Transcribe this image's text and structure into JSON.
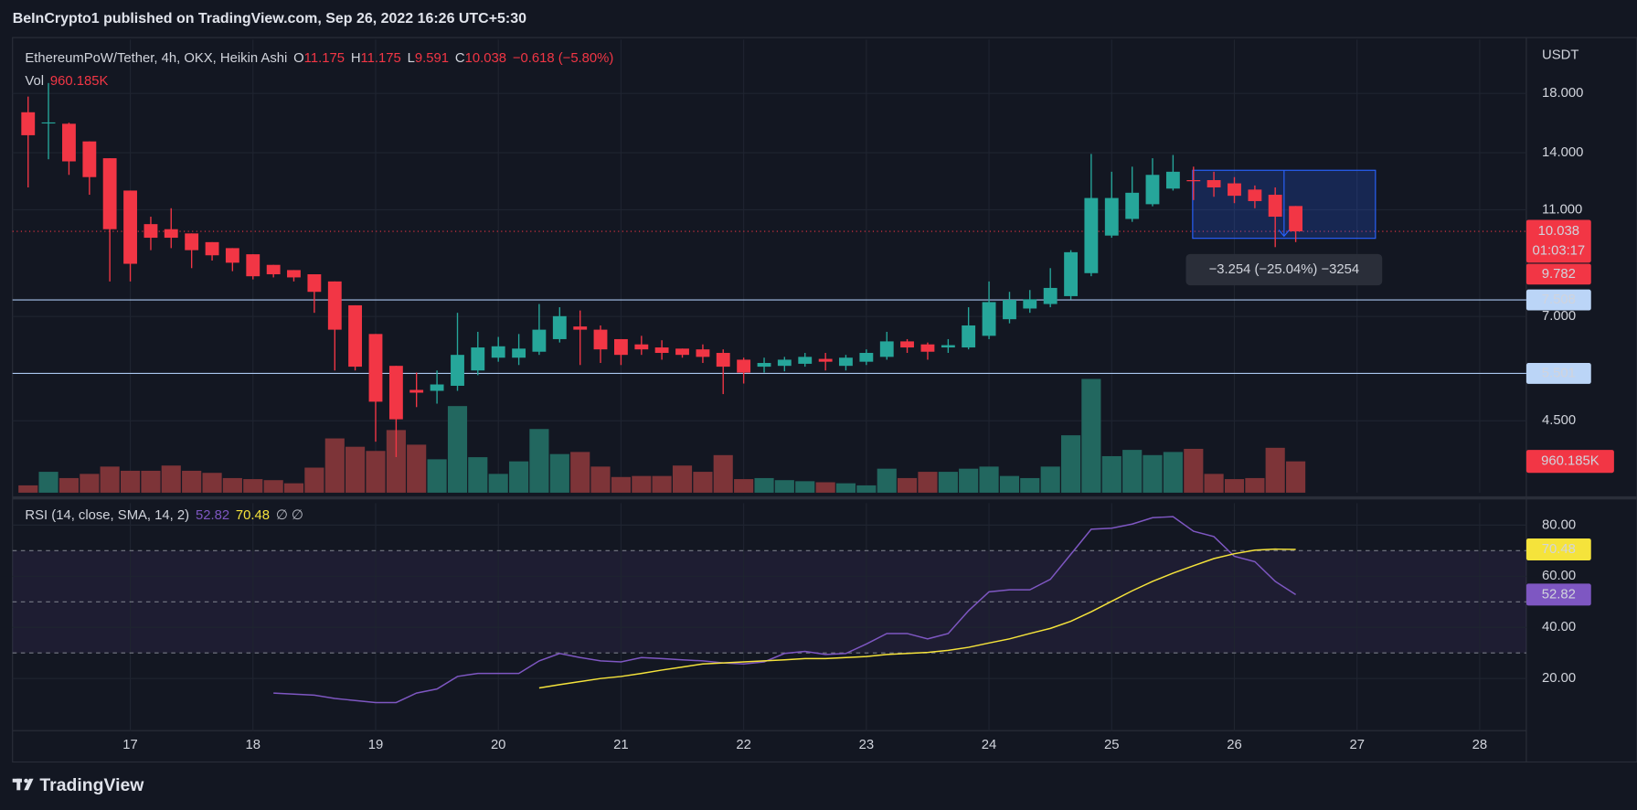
{
  "header": {
    "publisher": "BeInCrypto1 published on TradingView.com, Sep 26, 2022 16:26 UTC+5:30"
  },
  "footer": {
    "logo": "TradingView"
  },
  "chart_data": [
    {
      "type": "candlestick",
      "title": "EthereumPoW/Tether, 4h, OKX, Heikin Ashi",
      "ohlc_legend": [
        {
          "key": "O",
          "value": "11.175"
        },
        {
          "key": "H",
          "value": "11.175"
        },
        {
          "key": "L",
          "value": "9.591"
        },
        {
          "key": "C",
          "value": "10.038"
        }
      ],
      "change": "−0.618 (−5.80%)",
      "y_unit": "USDT",
      "log_scale": true,
      "grid": true,
      "up_color": "#26a69a",
      "down_color": "#f23645",
      "xlim": [
        16.04,
        28.38
      ],
      "xticks": [
        17,
        18,
        19,
        20,
        21,
        22,
        23,
        24,
        25,
        26,
        27,
        28
      ],
      "ylim": [
        3.32,
        22.6
      ],
      "yticks": [
        {
          "value": 4.5,
          "label": "4.500"
        },
        {
          "value": 7,
          "label": "7.000"
        },
        {
          "value": 11,
          "label": "11.000"
        },
        {
          "value": 14,
          "label": "14.000"
        },
        {
          "value": 18,
          "label": "18.000"
        }
      ],
      "x": [
        16.167,
        16.333,
        16.5,
        16.667,
        16.833,
        17,
        17.167,
        17.333,
        17.5,
        17.667,
        17.833,
        18,
        18.167,
        18.333,
        18.5,
        18.667,
        18.833,
        19,
        19.167,
        19.333,
        19.5,
        19.667,
        19.833,
        20,
        20.167,
        20.333,
        20.5,
        20.667,
        20.833,
        21,
        21.167,
        21.333,
        21.5,
        21.667,
        21.833,
        22,
        22.167,
        22.333,
        22.5,
        22.667,
        22.833,
        23,
        23.167,
        23.333,
        23.5,
        23.667,
        23.833,
        24,
        24.167,
        24.333,
        24.5,
        24.667,
        24.833,
        25,
        25.167,
        25.333,
        25.5,
        25.667,
        25.833,
        26,
        26.167,
        26.333,
        26.5
      ],
      "open": [
        16.62,
        15.9,
        15.83,
        14.69,
        13.68,
        11.93,
        10.35,
        10.13,
        9.95,
        9.59,
        9.35,
        9.11,
        8.71,
        8.52,
        8.37,
        8.12,
        7.34,
        6.5,
        5.68,
        5.13,
        5.11,
        5.22,
        5.57,
        5.88,
        5.88,
        6.03,
        6.36,
        6.71,
        6.62,
        6.36,
        6.22,
        6.14,
        6.11,
        6.09,
        6.0,
        5.83,
        5.66,
        5.68,
        5.73,
        5.85,
        5.68,
        5.78,
        5.9,
        6.3,
        6.22,
        6.14,
        6.14,
        6.45,
        6.92,
        7.24,
        7.38,
        7.63,
        8.41,
        9.86,
        10.58,
        11.26,
        12.03,
        12.47,
        12.47,
        12.3,
        11.98,
        11.72,
        11.175
      ],
      "high": [
        17.76,
        18.81,
        15.9,
        14.69,
        13.68,
        11.93,
        10.68,
        11.07,
        9.95,
        9.59,
        9.35,
        9.11,
        8.71,
        8.52,
        8.37,
        8.12,
        7.34,
        6.5,
        5.68,
        5.52,
        5.57,
        7.11,
        6.56,
        6.42,
        6.5,
        7.38,
        7.28,
        7.18,
        6.74,
        6.36,
        6.45,
        6.33,
        6.11,
        6.22,
        6.09,
        5.88,
        5.88,
        5.9,
        6.0,
        6.0,
        5.95,
        6.09,
        6.56,
        6.36,
        6.27,
        6.36,
        7.28,
        8.12,
        7.77,
        7.83,
        8.59,
        9.27,
        13.93,
        12.92,
        13.2,
        13.68,
        13.87,
        13.2,
        12.92,
        12.63,
        12.19,
        12.09,
        11.175
      ],
      "low": [
        12.09,
        13.62,
        12.75,
        11.72,
        8.12,
        8.12,
        9.27,
        9.35,
        8.59,
        8.87,
        8.48,
        8.19,
        8.26,
        8.12,
        7.11,
        5.57,
        5.57,
        4.12,
        3.86,
        4.77,
        4.84,
        5.11,
        5.46,
        5.78,
        5.7,
        5.95,
        6.27,
        5.7,
        5.75,
        5.7,
        5.95,
        5.83,
        5.88,
        5.75,
        5.04,
        5.27,
        5.52,
        5.55,
        5.66,
        5.57,
        5.57,
        5.7,
        5.83,
        6.0,
        5.83,
        6.0,
        6.09,
        6.36,
        6.8,
        7.11,
        7.28,
        7.53,
        8.3,
        9.77,
        10.45,
        11.16,
        11.93,
        11.46,
        11.62,
        11.31,
        11.07,
        9.39,
        9.591
      ],
      "close": [
        15.08,
        15.92,
        13.5,
        12.63,
        10.13,
        8.75,
        9.77,
        9.77,
        9.27,
        9.07,
        8.79,
        8.3,
        8.37,
        8.26,
        7.77,
        6.62,
        5.66,
        4.88,
        4.53,
        5.07,
        5.25,
        5.95,
        6.14,
        6.17,
        6.11,
        6.62,
        7.01,
        6.62,
        6.09,
        5.95,
        6.09,
        6.0,
        5.95,
        5.9,
        5.66,
        5.52,
        5.75,
        5.83,
        5.9,
        5.78,
        5.88,
        6.0,
        6.3,
        6.14,
        6.03,
        6.2,
        6.74,
        7.44,
        7.51,
        7.53,
        7.9,
        9.19,
        11.56,
        11.56,
        11.82,
        12.75,
        12.92,
        12.41,
        12.09,
        11.67,
        11.41,
        10.68,
        10.038
      ],
      "price_lines": {
        "values": [
          7.508,
          5.501
        ],
        "color": "#a9c6ef"
      },
      "last_price": 10.038,
      "countdown": "01:03:17",
      "secondary_price": 9.782,
      "measure": {
        "label": "−3.254 (−25.04%) −3254",
        "price_from": 13.0,
        "price_to": 9.746,
        "x_from": 25.66,
        "x_to": 27.15,
        "color": "#2962ff"
      }
    },
    {
      "type": "bar",
      "title": "Vol",
      "legend_value": "960.185K",
      "up_color": "#22675f",
      "down_color": "#7d3438",
      "ylim": [
        0,
        13890
      ],
      "values": [
        224,
        640,
        448,
        576,
        800,
        672,
        672,
        832,
        672,
        608,
        448,
        416,
        384,
        288,
        768,
        1664,
        1408,
        1280,
        1920,
        1472,
        1024,
        2656,
        1088,
        576,
        960,
        1952,
        1184,
        1248,
        800,
        480,
        512,
        512,
        832,
        640,
        1152,
        416,
        448,
        384,
        352,
        320,
        288,
        224,
        736,
        448,
        640,
        640,
        736,
        800,
        512,
        448,
        800,
        1760,
        3488,
        1120,
        1312,
        1152,
        1248,
        1344,
        576,
        416,
        448,
        1376,
        960.185
      ]
    },
    {
      "type": "line",
      "title": "RSI (14, close, SMA, 14, 2)",
      "extra": "∅ ∅",
      "grid": true,
      "ylim": [
        -0.4,
        88.6
      ],
      "yticks": [
        {
          "value": 20,
          "label": "20.00"
        },
        {
          "value": 40,
          "label": "40.00"
        },
        {
          "value": 60,
          "label": "60.00"
        },
        {
          "value": 80,
          "label": "80.00"
        }
      ],
      "band": [
        30,
        70
      ],
      "hlines": [
        30,
        50,
        70
      ],
      "series": [
        {
          "color": "#7e57c2",
          "values": [
            null,
            null,
            null,
            null,
            null,
            null,
            null,
            null,
            null,
            null,
            null,
            null,
            14.3,
            13.9,
            13.5,
            12.2,
            11.4,
            10.6,
            10.6,
            14.3,
            15.9,
            20.8,
            22.0,
            22.0,
            22.0,
            26.9,
            29.8,
            28.2,
            26.9,
            26.5,
            28.2,
            27.8,
            27.3,
            26.9,
            26.1,
            25.7,
            26.5,
            29.8,
            30.6,
            29.4,
            29.8,
            33.5,
            37.6,
            37.6,
            35.5,
            37.6,
            46.5,
            53.9,
            54.7,
            54.7,
            58.8,
            68.6,
            78.4,
            78.8,
            80.4,
            82.9,
            83.3,
            77.6,
            75.5,
            67.8,
            65.7,
            58.0,
            52.82
          ]
        },
        {
          "color": "#f5e33b",
          "values": [
            null,
            null,
            null,
            null,
            null,
            null,
            null,
            null,
            null,
            null,
            null,
            null,
            null,
            null,
            null,
            null,
            null,
            null,
            null,
            null,
            null,
            null,
            null,
            null,
            null,
            16.3,
            17.6,
            18.8,
            20.0,
            20.8,
            22.0,
            23.3,
            24.5,
            25.7,
            26.1,
            26.5,
            26.9,
            27.3,
            27.8,
            27.8,
            28.2,
            28.6,
            29.4,
            29.8,
            30.2,
            31.0,
            32.2,
            33.9,
            35.5,
            37.6,
            39.6,
            42.4,
            46.1,
            50.2,
            54.3,
            58.0,
            61.2,
            64.1,
            66.9,
            68.8,
            70.2,
            70.6,
            70.48
          ]
        }
      ]
    }
  ]
}
